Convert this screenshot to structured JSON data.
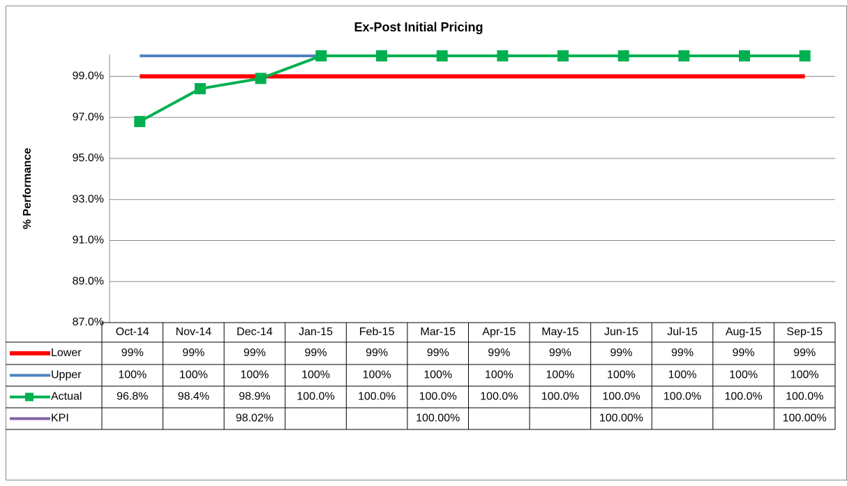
{
  "chart_data": {
    "type": "line",
    "title": "Ex-Post Initial Pricing",
    "y_label": "% Performance",
    "categories": [
      "Oct-14",
      "Nov-14",
      "Dec-14",
      "Jan-15",
      "Feb-15",
      "Mar-15",
      "Apr-15",
      "May-15",
      "Jun-15",
      "Jul-15",
      "Aug-15",
      "Sep-15"
    ],
    "series": [
      {
        "name": "Lower",
        "color": "#ff0000",
        "values": [
          99,
          99,
          99,
          99,
          99,
          99,
          99,
          99,
          99,
          99,
          99,
          99
        ],
        "value_labels": [
          "99%",
          "99%",
          "99%",
          "99%",
          "99%",
          "99%",
          "99%",
          "99%",
          "99%",
          "99%",
          "99%",
          "99%"
        ]
      },
      {
        "name": "Upper",
        "color": "#4f81bd",
        "values": [
          100,
          100,
          100,
          100,
          100,
          100,
          100,
          100,
          100,
          100,
          100,
          100
        ],
        "value_labels": [
          "100%",
          "100%",
          "100%",
          "100%",
          "100%",
          "100%",
          "100%",
          "100%",
          "100%",
          "100%",
          "100%",
          "100%"
        ]
      },
      {
        "name": "Actual",
        "color": "#00b050",
        "marker": "square",
        "values": [
          96.8,
          98.4,
          98.9,
          100,
          100,
          100,
          100,
          100,
          100,
          100,
          100,
          100
        ],
        "value_labels": [
          "96.8%",
          "98.4%",
          "98.9%",
          "100.0%",
          "100.0%",
          "100.0%",
          "100.0%",
          "100.0%",
          "100.0%",
          "100.0%",
          "100.0%",
          "100.0%"
        ]
      },
      {
        "name": "KPI",
        "color": "#8064a2",
        "values": [
          null,
          null,
          98.02,
          null,
          null,
          100,
          null,
          null,
          100,
          null,
          null,
          100
        ],
        "value_labels": [
          null,
          null,
          "98.02%",
          null,
          null,
          "100.00%",
          null,
          null,
          "100.00%",
          null,
          null,
          "100.00%"
        ]
      }
    ],
    "ylim": [
      87,
      100
    ],
    "yticks": [
      {
        "value": 87,
        "label": "87.0%"
      },
      {
        "value": 89,
        "label": "89.0%"
      },
      {
        "value": 91,
        "label": "91.0%"
      },
      {
        "value": 93,
        "label": "93.0%"
      },
      {
        "value": 95,
        "label": "95.0%"
      },
      {
        "value": 97,
        "label": "97.0%"
      },
      {
        "value": 99,
        "label": "99.0%"
      }
    ],
    "grid": true
  }
}
